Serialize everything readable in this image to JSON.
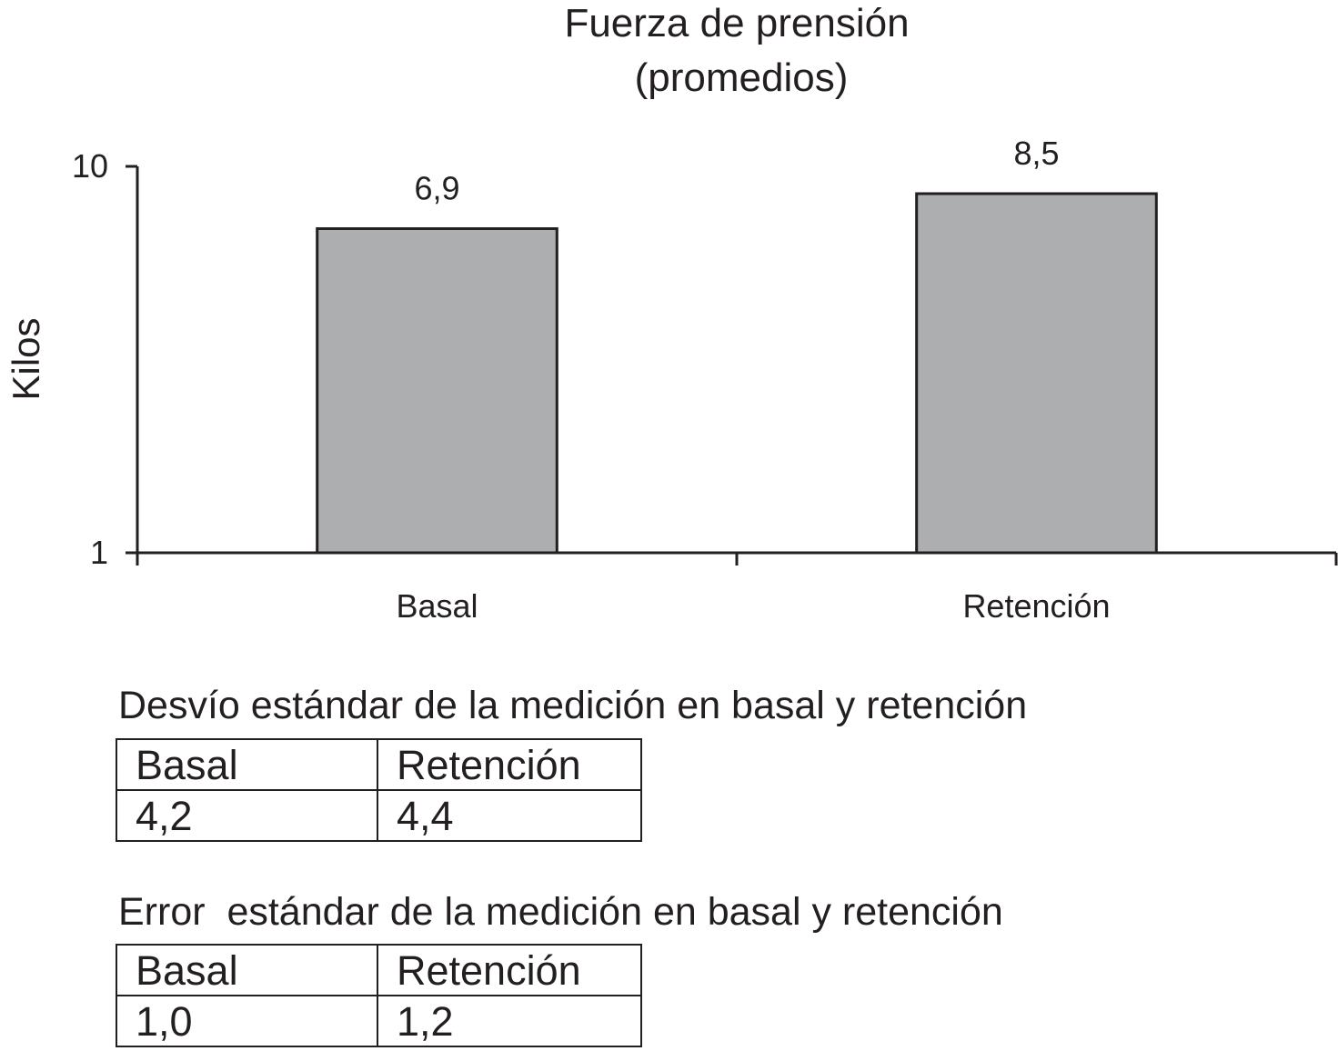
{
  "chart_data": {
    "type": "bar",
    "title": "Fuerza de prensión",
    "subtitle": "(promedios)",
    "ylabel": "Kilos",
    "xlabel": "",
    "yscale": "log",
    "ylim": [
      1,
      10
    ],
    "yticks": [
      "1",
      "10"
    ],
    "categories": [
      "Basal",
      "Retención"
    ],
    "values": [
      6.9,
      8.5
    ],
    "value_labels": [
      "6,9",
      "8,5"
    ],
    "grid": false,
    "legend": "none",
    "colors": {
      "bar": "#adaeb0",
      "outline": "#231f20",
      "text": "#231f20"
    }
  },
  "tables": [
    {
      "caption": "Desvío estándar de la medición en basal y retención",
      "headers": [
        "Basal",
        "Retención"
      ],
      "values": [
        "4,2",
        "4,4"
      ]
    },
    {
      "caption": "Error  estándar de la medición en basal y retención",
      "headers": [
        "Basal",
        "Retención"
      ],
      "values": [
        "1,0",
        "1,2"
      ]
    }
  ]
}
